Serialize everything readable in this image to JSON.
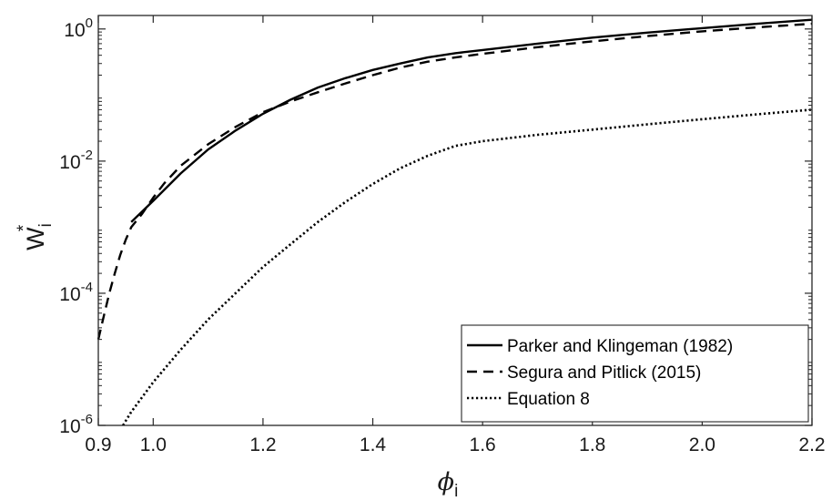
{
  "chart_data": {
    "type": "line",
    "title": "",
    "xlabel": "ϕ",
    "xlabel_sub": "i",
    "ylabel": "W",
    "ylabel_sup": "*",
    "ylabel_sub": "i",
    "xlim": [
      0.9,
      2.2
    ],
    "ylim": [
      1e-06,
      1.6
    ],
    "yscale": "log",
    "grid": false,
    "legend_position": "bottom-right",
    "x_ticks": [
      0.9,
      1.0,
      1.2,
      1.4,
      1.6,
      1.8,
      2.0,
      2.2
    ],
    "x_tick_labels": [
      "0.9",
      "1.0",
      "1.2",
      "1.4",
      "1.6",
      "1.8",
      "2.0",
      "2.2"
    ],
    "y_ticks": [
      {
        "value": 1e-06,
        "base": "10",
        "exp": "-6"
      },
      {
        "value": 0.0001,
        "base": "10",
        "exp": "-4"
      },
      {
        "value": 0.01,
        "base": "10",
        "exp": "-2"
      },
      {
        "value": 1,
        "base": "10",
        "exp": "0"
      }
    ],
    "series": [
      {
        "name": "Parker and Klingeman (1982)",
        "style": "solid",
        "points": [
          [
            0.96,
            0.0012
          ],
          [
            1.0,
            0.0025
          ],
          [
            1.05,
            0.0065
          ],
          [
            1.1,
            0.015
          ],
          [
            1.15,
            0.029
          ],
          [
            1.2,
            0.052
          ],
          [
            1.25,
            0.085
          ],
          [
            1.3,
            0.13
          ],
          [
            1.35,
            0.18
          ],
          [
            1.4,
            0.24
          ],
          [
            1.45,
            0.3
          ],
          [
            1.5,
            0.37
          ],
          [
            1.55,
            0.43
          ],
          [
            1.6,
            0.48
          ],
          [
            1.7,
            0.6
          ],
          [
            1.8,
            0.74
          ],
          [
            1.9,
            0.88
          ],
          [
            2.0,
            1.03
          ],
          [
            2.1,
            1.2
          ],
          [
            2.2,
            1.38
          ]
        ]
      },
      {
        "name": "Segura and Pitlick (2015)",
        "style": "dashed",
        "points": [
          [
            0.9,
            2e-05
          ],
          [
            0.91,
            4.5e-05
          ],
          [
            0.92,
            0.0001
          ],
          [
            0.93,
            0.0002
          ],
          [
            0.94,
            0.00038
          ],
          [
            0.95,
            0.00065
          ],
          [
            0.96,
            0.001
          ],
          [
            0.98,
            0.0016
          ],
          [
            1.0,
            0.0028
          ],
          [
            1.02,
            0.0046
          ],
          [
            1.05,
            0.0085
          ],
          [
            1.1,
            0.018
          ],
          [
            1.15,
            0.033
          ],
          [
            1.2,
            0.055
          ],
          [
            1.25,
            0.08
          ],
          [
            1.3,
            0.11
          ],
          [
            1.35,
            0.15
          ],
          [
            1.4,
            0.2
          ],
          [
            1.45,
            0.26
          ],
          [
            1.5,
            0.32
          ],
          [
            1.55,
            0.37
          ],
          [
            1.6,
            0.42
          ],
          [
            1.7,
            0.53
          ],
          [
            1.8,
            0.65
          ],
          [
            1.9,
            0.78
          ],
          [
            2.0,
            0.92
          ],
          [
            2.1,
            1.06
          ],
          [
            2.2,
            1.2
          ]
        ]
      },
      {
        "name": "Equation 8",
        "style": "dotted",
        "points": [
          [
            0.945,
            1e-06
          ],
          [
            0.96,
            1.6e-06
          ],
          [
            1.0,
            4.5e-06
          ],
          [
            1.05,
            1.4e-05
          ],
          [
            1.1,
            4e-05
          ],
          [
            1.15,
            0.0001
          ],
          [
            1.2,
            0.00025
          ],
          [
            1.25,
            0.00055
          ],
          [
            1.3,
            0.0012
          ],
          [
            1.35,
            0.0024
          ],
          [
            1.4,
            0.0045
          ],
          [
            1.45,
            0.0078
          ],
          [
            1.5,
            0.012
          ],
          [
            1.55,
            0.017
          ],
          [
            1.6,
            0.02
          ],
          [
            1.7,
            0.025
          ],
          [
            1.8,
            0.03
          ],
          [
            1.9,
            0.036
          ],
          [
            2.0,
            0.043
          ],
          [
            2.1,
            0.051
          ],
          [
            2.2,
            0.06
          ]
        ]
      }
    ]
  }
}
